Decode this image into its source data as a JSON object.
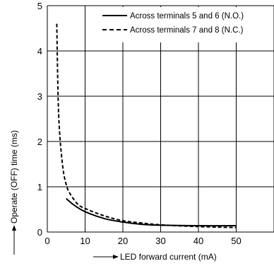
{
  "chart_data": {
    "type": "line",
    "xlabel": "LED forward current (mA)",
    "ylabel": "Operate (OFF) time (ms)",
    "xlim": [
      0,
      60
    ],
    "ylim": [
      0,
      5
    ],
    "xticks": [
      0,
      10,
      20,
      30,
      40,
      50
    ],
    "yticks": [
      0,
      1,
      2,
      3,
      4,
      5
    ],
    "grid": true,
    "legend_position": "top-right",
    "series": [
      {
        "name": "Across terminals 5 and 6 (N.O.)",
        "style": "solid",
        "x": [
          5,
          7,
          10,
          15,
          20,
          25,
          30,
          40,
          50
        ],
        "y": [
          0.74,
          0.6,
          0.45,
          0.3,
          0.22,
          0.17,
          0.15,
          0.14,
          0.14
        ]
      },
      {
        "name": "Across terminals 7 and 8 (N.C.)",
        "style": "dashed",
        "x": [
          2.5,
          3,
          4,
          5,
          6,
          8,
          10,
          15,
          20,
          25,
          30,
          40,
          50
        ],
        "y": [
          4.6,
          2.6,
          1.5,
          1.05,
          0.85,
          0.62,
          0.52,
          0.36,
          0.25,
          0.2,
          0.16,
          0.12,
          0.1
        ]
      }
    ]
  }
}
